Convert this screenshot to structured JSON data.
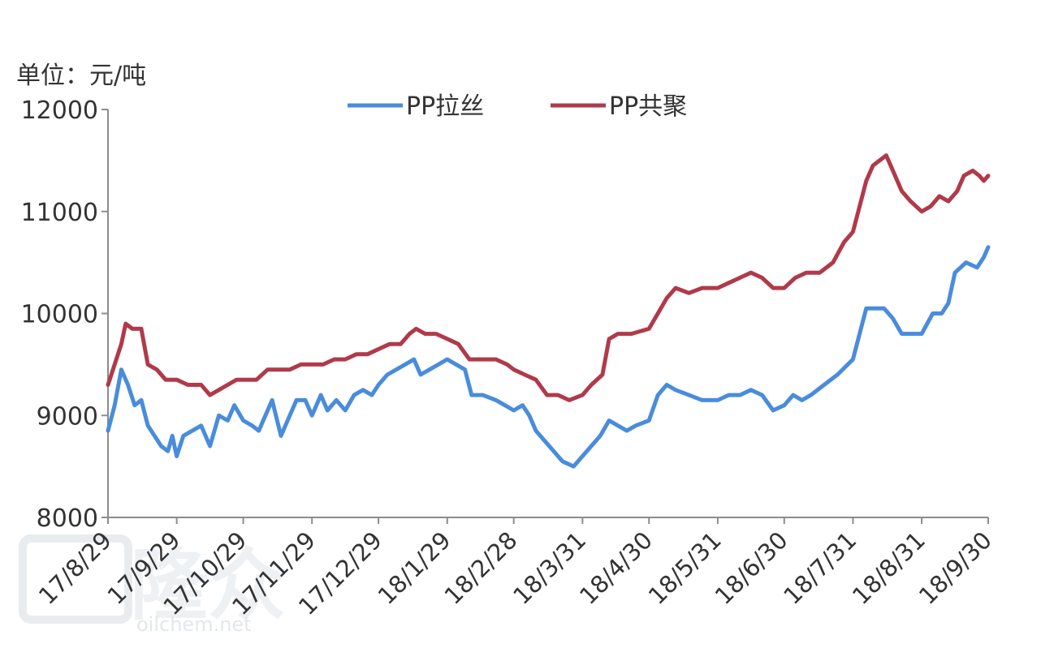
{
  "chart_data": {
    "type": "line",
    "unit_label": "单位：元/吨",
    "ylim": [
      8000,
      12000
    ],
    "y_ticks": [
      8000,
      9000,
      10000,
      11000,
      12000
    ],
    "y_tick_labels": [
      "8000",
      "9000",
      "10000",
      "11000",
      "12000"
    ],
    "x_range": [
      "2017-08-29",
      "2018-09-30"
    ],
    "x_ticks": [
      "2017-08-29",
      "2017-09-29",
      "2017-10-29",
      "2017-11-29",
      "2017-12-29",
      "2018-01-29",
      "2018-02-28",
      "2018-03-31",
      "2018-04-30",
      "2018-05-31",
      "2018-06-30",
      "2018-07-31",
      "2018-08-31",
      "2018-09-30"
    ],
    "x_tick_labels": [
      "17/8/29",
      "17/9/29",
      "17/10/29",
      "17/11/29",
      "17/12/29",
      "18/1/29",
      "18/2/28",
      "18/3/31",
      "18/4/30",
      "18/5/31",
      "18/6/30",
      "18/7/31",
      "18/8/31",
      "18/9/30"
    ],
    "legend_position": "top",
    "grid": false,
    "watermark": "隆众 oilchem.net",
    "series": [
      {
        "name": "PP拉丝",
        "color": "#4a8cdc",
        "points": [
          [
            "2017-08-29",
            8850
          ],
          [
            "2017-09-01",
            9100
          ],
          [
            "2017-09-04",
            9450
          ],
          [
            "2017-09-07",
            9300
          ],
          [
            "2017-09-10",
            9100
          ],
          [
            "2017-09-13",
            9150
          ],
          [
            "2017-09-16",
            8900
          ],
          [
            "2017-09-19",
            8800
          ],
          [
            "2017-09-22",
            8700
          ],
          [
            "2017-09-25",
            8650
          ],
          [
            "2017-09-27",
            8800
          ],
          [
            "2017-09-29",
            8600
          ],
          [
            "2017-10-02",
            8800
          ],
          [
            "2017-10-06",
            8850
          ],
          [
            "2017-10-10",
            8900
          ],
          [
            "2017-10-14",
            8700
          ],
          [
            "2017-10-18",
            9000
          ],
          [
            "2017-10-22",
            8950
          ],
          [
            "2017-10-25",
            9100
          ],
          [
            "2017-10-29",
            8950
          ],
          [
            "2017-11-02",
            8900
          ],
          [
            "2017-11-05",
            8850
          ],
          [
            "2017-11-08",
            9000
          ],
          [
            "2017-11-11",
            9150
          ],
          [
            "2017-11-15",
            8800
          ],
          [
            "2017-11-19",
            9000
          ],
          [
            "2017-11-22",
            9150
          ],
          [
            "2017-11-26",
            9150
          ],
          [
            "2017-11-29",
            9000
          ],
          [
            "2017-12-03",
            9200
          ],
          [
            "2017-12-06",
            9050
          ],
          [
            "2017-12-10",
            9150
          ],
          [
            "2017-12-14",
            9050
          ],
          [
            "2017-12-18",
            9200
          ],
          [
            "2017-12-22",
            9250
          ],
          [
            "2017-12-26",
            9200
          ],
          [
            "2017-12-29",
            9300
          ],
          [
            "2018-01-02",
            9400
          ],
          [
            "2018-01-06",
            9450
          ],
          [
            "2018-01-10",
            9500
          ],
          [
            "2018-01-14",
            9550
          ],
          [
            "2018-01-17",
            9400
          ],
          [
            "2018-01-21",
            9450
          ],
          [
            "2018-01-25",
            9500
          ],
          [
            "2018-01-29",
            9550
          ],
          [
            "2018-02-02",
            9500
          ],
          [
            "2018-02-06",
            9450
          ],
          [
            "2018-02-09",
            9200
          ],
          [
            "2018-02-14",
            9200
          ],
          [
            "2018-02-20",
            9150
          ],
          [
            "2018-02-24",
            9100
          ],
          [
            "2018-02-28",
            9050
          ],
          [
            "2018-03-04",
            9100
          ],
          [
            "2018-03-07",
            9000
          ],
          [
            "2018-03-10",
            8850
          ],
          [
            "2018-03-14",
            8750
          ],
          [
            "2018-03-18",
            8650
          ],
          [
            "2018-03-22",
            8550
          ],
          [
            "2018-03-27",
            8500
          ],
          [
            "2018-03-31",
            8600
          ],
          [
            "2018-04-04",
            8700
          ],
          [
            "2018-04-08",
            8800
          ],
          [
            "2018-04-12",
            8950
          ],
          [
            "2018-04-16",
            8900
          ],
          [
            "2018-04-20",
            8850
          ],
          [
            "2018-04-24",
            8900
          ],
          [
            "2018-04-30",
            8950
          ],
          [
            "2018-05-04",
            9200
          ],
          [
            "2018-05-08",
            9300
          ],
          [
            "2018-05-12",
            9250
          ],
          [
            "2018-05-18",
            9200
          ],
          [
            "2018-05-24",
            9150
          ],
          [
            "2018-05-31",
            9150
          ],
          [
            "2018-06-05",
            9200
          ],
          [
            "2018-06-10",
            9200
          ],
          [
            "2018-06-15",
            9250
          ],
          [
            "2018-06-20",
            9200
          ],
          [
            "2018-06-25",
            9050
          ],
          [
            "2018-06-30",
            9100
          ],
          [
            "2018-07-04",
            9200
          ],
          [
            "2018-07-08",
            9150
          ],
          [
            "2018-07-12",
            9200
          ],
          [
            "2018-07-18",
            9300
          ],
          [
            "2018-07-24",
            9400
          ],
          [
            "2018-07-31",
            9550
          ],
          [
            "2018-08-03",
            9800
          ],
          [
            "2018-08-06",
            10050
          ],
          [
            "2018-08-10",
            10050
          ],
          [
            "2018-08-14",
            10050
          ],
          [
            "2018-08-18",
            9950
          ],
          [
            "2018-08-22",
            9800
          ],
          [
            "2018-08-26",
            9800
          ],
          [
            "2018-08-31",
            9800
          ],
          [
            "2018-09-05",
            10000
          ],
          [
            "2018-09-09",
            10000
          ],
          [
            "2018-09-12",
            10100
          ],
          [
            "2018-09-15",
            10400
          ],
          [
            "2018-09-20",
            10500
          ],
          [
            "2018-09-25",
            10450
          ],
          [
            "2018-09-28",
            10550
          ],
          [
            "2018-09-30",
            10650
          ]
        ]
      },
      {
        "name": "PP共聚",
        "color": "#b03a4a",
        "points": [
          [
            "2017-08-29",
            9300
          ],
          [
            "2017-09-01",
            9500
          ],
          [
            "2017-09-04",
            9700
          ],
          [
            "2017-09-06",
            9900
          ],
          [
            "2017-09-09",
            9850
          ],
          [
            "2017-09-13",
            9850
          ],
          [
            "2017-09-16",
            9500
          ],
          [
            "2017-09-20",
            9450
          ],
          [
            "2017-09-24",
            9350
          ],
          [
            "2017-09-29",
            9350
          ],
          [
            "2017-10-04",
            9300
          ],
          [
            "2017-10-10",
            9300
          ],
          [
            "2017-10-14",
            9200
          ],
          [
            "2017-10-18",
            9250
          ],
          [
            "2017-10-22",
            9300
          ],
          [
            "2017-10-26",
            9350
          ],
          [
            "2017-10-29",
            9350
          ],
          [
            "2017-11-04",
            9350
          ],
          [
            "2017-11-09",
            9450
          ],
          [
            "2017-11-14",
            9450
          ],
          [
            "2017-11-19",
            9450
          ],
          [
            "2017-11-24",
            9500
          ],
          [
            "2017-11-29",
            9500
          ],
          [
            "2017-12-04",
            9500
          ],
          [
            "2017-12-09",
            9550
          ],
          [
            "2017-12-14",
            9550
          ],
          [
            "2017-12-19",
            9600
          ],
          [
            "2017-12-24",
            9600
          ],
          [
            "2017-12-29",
            9650
          ],
          [
            "2018-01-03",
            9700
          ],
          [
            "2018-01-08",
            9700
          ],
          [
            "2018-01-12",
            9800
          ],
          [
            "2018-01-15",
            9850
          ],
          [
            "2018-01-19",
            9800
          ],
          [
            "2018-01-24",
            9800
          ],
          [
            "2018-01-29",
            9750
          ],
          [
            "2018-02-03",
            9700
          ],
          [
            "2018-02-08",
            9550
          ],
          [
            "2018-02-14",
            9550
          ],
          [
            "2018-02-20",
            9550
          ],
          [
            "2018-02-25",
            9500
          ],
          [
            "2018-02-28",
            9450
          ],
          [
            "2018-03-05",
            9400
          ],
          [
            "2018-03-10",
            9350
          ],
          [
            "2018-03-15",
            9200
          ],
          [
            "2018-03-20",
            9200
          ],
          [
            "2018-03-25",
            9150
          ],
          [
            "2018-03-31",
            9200
          ],
          [
            "2018-04-04",
            9300
          ],
          [
            "2018-04-09",
            9400
          ],
          [
            "2018-04-12",
            9750
          ],
          [
            "2018-04-16",
            9800
          ],
          [
            "2018-04-22",
            9800
          ],
          [
            "2018-04-30",
            9850
          ],
          [
            "2018-05-04",
            10000
          ],
          [
            "2018-05-08",
            10150
          ],
          [
            "2018-05-12",
            10250
          ],
          [
            "2018-05-18",
            10200
          ],
          [
            "2018-05-24",
            10250
          ],
          [
            "2018-05-31",
            10250
          ],
          [
            "2018-06-05",
            10300
          ],
          [
            "2018-06-10",
            10350
          ],
          [
            "2018-06-15",
            10400
          ],
          [
            "2018-06-20",
            10350
          ],
          [
            "2018-06-25",
            10250
          ],
          [
            "2018-06-30",
            10250
          ],
          [
            "2018-07-05",
            10350
          ],
          [
            "2018-07-10",
            10400
          ],
          [
            "2018-07-16",
            10400
          ],
          [
            "2018-07-22",
            10500
          ],
          [
            "2018-07-27",
            10700
          ],
          [
            "2018-07-31",
            10800
          ],
          [
            "2018-08-03",
            11050
          ],
          [
            "2018-08-06",
            11300
          ],
          [
            "2018-08-09",
            11450
          ],
          [
            "2018-08-12",
            11500
          ],
          [
            "2018-08-15",
            11550
          ],
          [
            "2018-08-18",
            11400
          ],
          [
            "2018-08-22",
            11200
          ],
          [
            "2018-08-26",
            11100
          ],
          [
            "2018-08-31",
            11000
          ],
          [
            "2018-09-04",
            11050
          ],
          [
            "2018-09-08",
            11150
          ],
          [
            "2018-09-12",
            11100
          ],
          [
            "2018-09-16",
            11200
          ],
          [
            "2018-09-19",
            11350
          ],
          [
            "2018-09-23",
            11400
          ],
          [
            "2018-09-26",
            11350
          ],
          [
            "2018-09-28",
            11300
          ],
          [
            "2018-09-30",
            11350
          ]
        ]
      }
    ]
  }
}
